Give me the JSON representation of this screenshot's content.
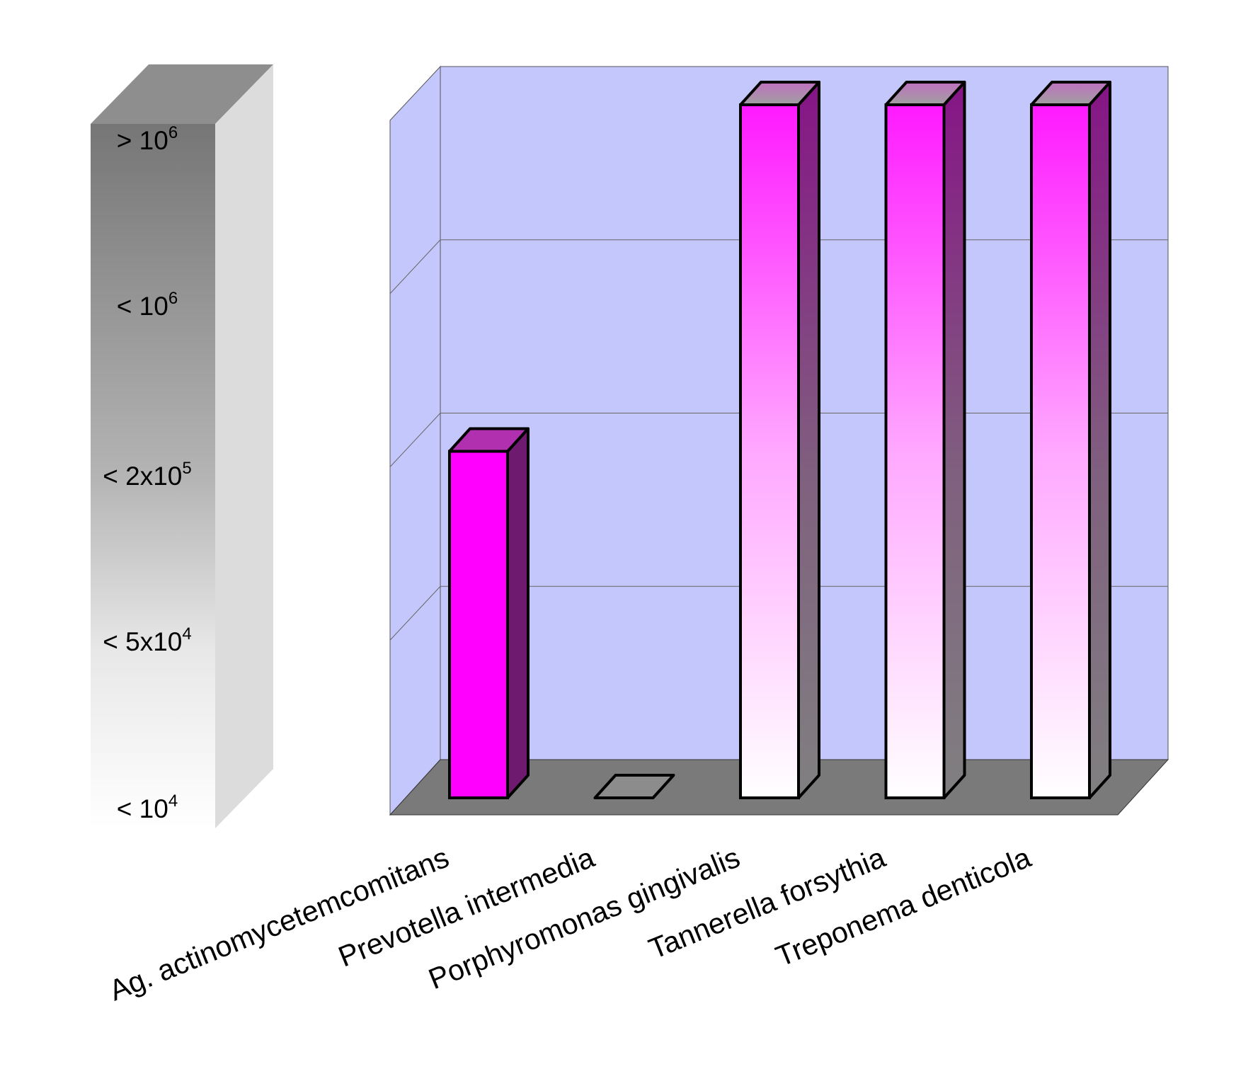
{
  "chart_data": {
    "type": "bar",
    "style": "3d-column",
    "title": "",
    "xlabel": "",
    "ylabel": "",
    "categories": [
      "Ag. actinomycetemcomitans",
      "Prevotella intermedia",
      "Porphyromonas gingivalis",
      "Tannerella forsythia",
      "Treponema denticola"
    ],
    "values": [
      2,
      0,
      4,
      4,
      4
    ],
    "value_scale": "ordinal level index into scale_levels",
    "scale_levels": [
      {
        "text": "< 10",
        "sup": "4"
      },
      {
        "text": "< 5x10",
        "sup": "4"
      },
      {
        "text": "< 2x10",
        "sup": "5"
      },
      {
        "text": "< 10",
        "sup": "6"
      },
      {
        "text": "> 10",
        "sup": "6"
      }
    ],
    "ylim": [
      0,
      4
    ],
    "grid": true,
    "colors": {
      "wall": "#c4c7fb",
      "floor": "#7a7a7a",
      "bar_solid": "#ff00ff",
      "bar_side": "#6e1a6e",
      "bar_top": "#b030b0",
      "bar_gradient_top": "#ff1aff",
      "bar_gradient_bottom": "#ffffff",
      "empty_bar": "#8c8c8c"
    }
  }
}
